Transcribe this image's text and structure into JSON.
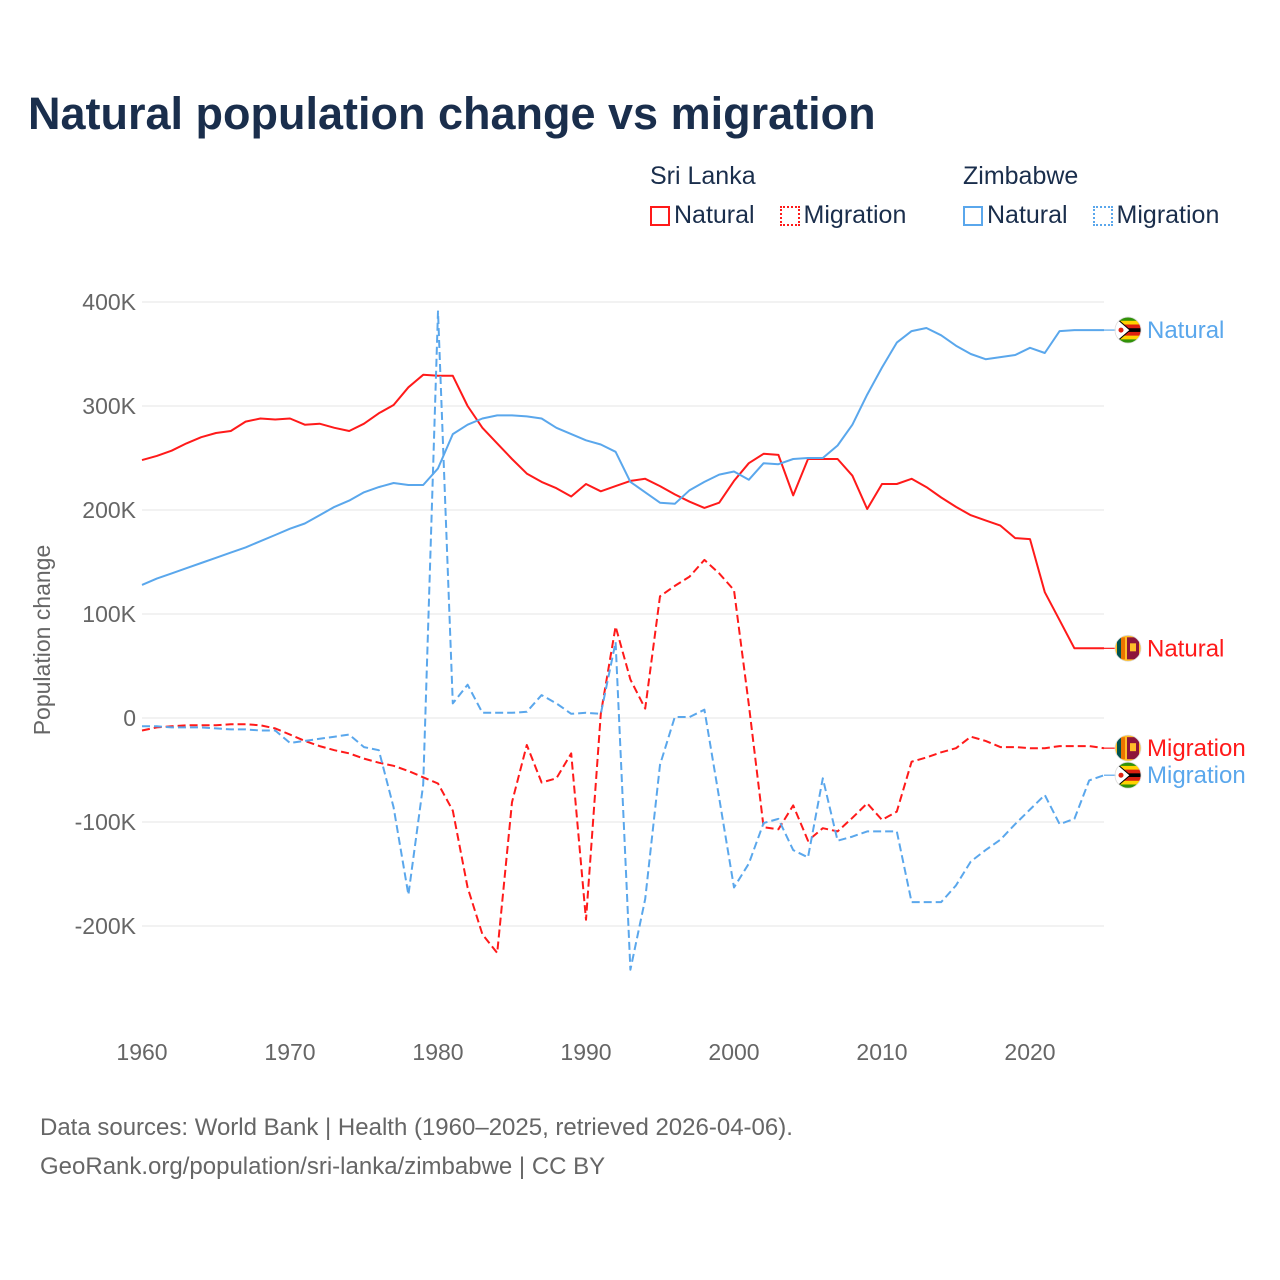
{
  "colors": {
    "sri_lanka": "#ff1a1a",
    "zimbabwe": "#5aa7ec",
    "title": "#1a2e4c",
    "axis_text": "#666666",
    "grid": "#e6e6e6"
  },
  "legend": {
    "groups": [
      {
        "name": "Sri Lanka",
        "items": [
          {
            "label": "Natural",
            "style": "solid"
          },
          {
            "label": "Migration",
            "style": "dotted"
          }
        ]
      },
      {
        "name": "Zimbabwe",
        "items": [
          {
            "label": "Natural",
            "style": "solid"
          },
          {
            "label": "Migration",
            "style": "dotted"
          }
        ]
      }
    ]
  },
  "footer": {
    "line1": "Data sources: World Bank | Health (1960–2025, retrieved 2026-04-06).",
    "line2": "GeoRank.org/population/sri-lanka/zimbabwe | CC BY"
  },
  "chart_data": {
    "type": "line",
    "title": "Natural population change vs migration",
    "xlabel": "",
    "ylabel": "Population change",
    "xlim": [
      1960,
      2025
    ],
    "ylim": [
      -200000,
      400000
    ],
    "x_ticks": [
      1960,
      1970,
      1980,
      1990,
      2000,
      2010,
      2020
    ],
    "x_tick_labels": [
      "1960",
      "1970",
      "1980",
      "1990",
      "2000",
      "2010",
      "2020"
    ],
    "y_ticks": [
      400000,
      300000,
      200000,
      100000,
      0,
      -100000,
      -200000
    ],
    "y_tick_labels": [
      "400K",
      "300K",
      "200K",
      "100K",
      "0",
      "-100K",
      "-200K"
    ],
    "grid": true,
    "legend_position": "top-right",
    "unit": "thousands",
    "x_start": 1960,
    "series": [
      {
        "name": "Sri Lanka Natural",
        "country": "Sri Lanka",
        "end_label": "Natural",
        "color": "#ff1a1a",
        "dash": "solid",
        "flag": "sri-lanka",
        "values": [
          248,
          252,
          257,
          264,
          270,
          274,
          276,
          285,
          288,
          287,
          288,
          282,
          283,
          279,
          276,
          283,
          293,
          301,
          318,
          330,
          329,
          329,
          300,
          279,
          264,
          249,
          235,
          227,
          221,
          213,
          225,
          218,
          223,
          228,
          230,
          223,
          215,
          208,
          202,
          207,
          228,
          245,
          254,
          253,
          214,
          249,
          249,
          249,
          233,
          201,
          225,
          225,
          230,
          222,
          212,
          203,
          195,
          190,
          185,
          173,
          172,
          121,
          94,
          67,
          67,
          67
        ]
      },
      {
        "name": "Sri Lanka Migration",
        "country": "Sri Lanka",
        "end_label": "Migration",
        "color": "#ff1a1a",
        "dash": "dashed",
        "flag": "sri-lanka",
        "values": [
          -12,
          -9,
          -8,
          -7,
          -7,
          -7,
          -6,
          -6,
          -7,
          -10,
          -16,
          -22,
          -27,
          -31,
          -34,
          -39,
          -43,
          -46,
          -51,
          -57,
          -63,
          -89,
          -163,
          -208,
          -226,
          -81,
          -26,
          -62,
          -58,
          -34,
          -194,
          4,
          88,
          37,
          9,
          117,
          127,
          136,
          152,
          139,
          123,
          13,
          -105,
          -107,
          -84,
          -118,
          -106,
          -109,
          -96,
          -82,
          -98,
          -90,
          -42,
          -38,
          -33,
          -29,
          -18,
          -22,
          -28,
          -28,
          -29,
          -29,
          -27,
          -27,
          -27,
          -29
        ]
      },
      {
        "name": "Zimbabwe Natural",
        "country": "Zimbabwe",
        "end_label": "Natural",
        "color": "#5aa7ec",
        "dash": "solid",
        "flag": "zimbabwe",
        "values": [
          128,
          134,
          139,
          144,
          149,
          154,
          159,
          164,
          170,
          176,
          182,
          187,
          195,
          203,
          209,
          217,
          222,
          226,
          224,
          224,
          240,
          273,
          282,
          288,
          291,
          291,
          290,
          288,
          279,
          273,
          267,
          263,
          256,
          227,
          217,
          207,
          206,
          219,
          227,
          234,
          237,
          229,
          245,
          244,
          249,
          250,
          250,
          262,
          282,
          311,
          337,
          361,
          372,
          375,
          368,
          358,
          350,
          345,
          347,
          349,
          356,
          351,
          372,
          373,
          373,
          373
        ]
      },
      {
        "name": "Zimbabwe Migration",
        "country": "Zimbabwe",
        "end_label": "Migration",
        "color": "#5aa7ec",
        "dash": "dashed",
        "flag": "zimbabwe",
        "values": [
          -8,
          -8,
          -9,
          -9,
          -9,
          -10,
          -11,
          -11,
          -12,
          -12,
          -24,
          -22,
          -20,
          -18,
          -16,
          -28,
          -31,
          -86,
          -170,
          -64,
          391,
          14,
          32,
          5,
          5,
          5,
          6,
          22,
          14,
          4,
          5,
          4,
          73,
          -242,
          -174,
          -45,
          1,
          1,
          8,
          -77,
          -163,
          -140,
          -101,
          -97,
          -127,
          -134,
          -58,
          -118,
          -114,
          -109,
          -109,
          -109,
          -177,
          -177,
          -177,
          -161,
          -138,
          -127,
          -117,
          -102,
          -88,
          -74,
          -102,
          -97,
          -60,
          -55
        ]
      }
    ]
  }
}
